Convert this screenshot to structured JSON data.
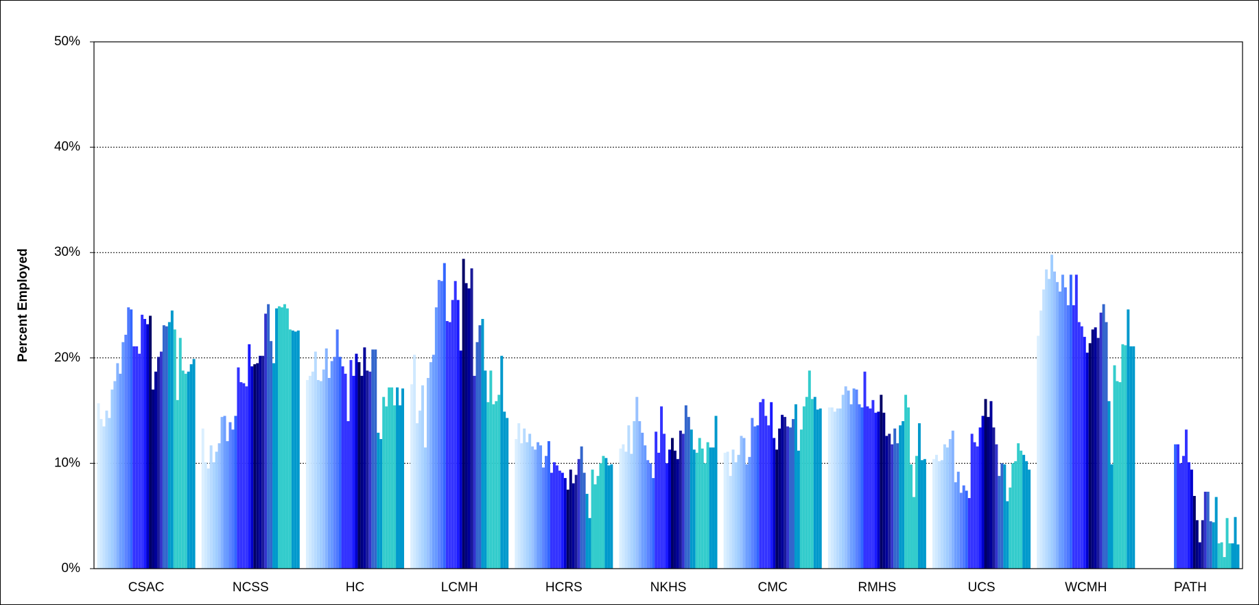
{
  "chart_data": {
    "type": "bar",
    "ylabel": "Percent Employed",
    "categories": [
      "CSAC",
      "NCSS",
      "HC",
      "LCMH",
      "HCRS",
      "NKHS",
      "CMC",
      "RMHS",
      "UCS",
      "WCMH",
      "PATH"
    ],
    "ylim": [
      0,
      50
    ],
    "yticks": [
      {
        "value": 0,
        "label": "0%"
      },
      {
        "value": 10,
        "label": "10%"
      },
      {
        "value": 20,
        "label": "20%"
      },
      {
        "value": 30,
        "label": "30%"
      },
      {
        "value": 40,
        "label": "40%"
      },
      {
        "value": 50,
        "label": "50%"
      }
    ],
    "grid": true,
    "series": [
      {
        "color": "#dbefff",
        "values": [
          15.7,
          13.3,
          17.9,
          17.5,
          12.3,
          11.4,
          11.0,
          15.3,
          10.4,
          22.1,
          null
        ]
      },
      {
        "color": "#d0e9ff",
        "values": [
          14.2,
          10.1,
          18.3,
          20.3,
          13.8,
          11.8,
          11.1,
          15.3,
          10.8,
          24.5,
          null
        ]
      },
      {
        "color": "#c4e2ff",
        "values": [
          13.5,
          9.5,
          18.7,
          13.8,
          11.9,
          11.1,
          8.8,
          14.9,
          10.2,
          26.5,
          null
        ]
      },
      {
        "color": "#b8dbff",
        "values": [
          15.0,
          11.7,
          20.6,
          15.0,
          13.3,
          13.6,
          11.3,
          15.2,
          10.3,
          28.4,
          null
        ]
      },
      {
        "color": "#acd4ff",
        "values": [
          14.3,
          10.1,
          17.9,
          17.4,
          12.0,
          10.9,
          10.1,
          15.2,
          11.8,
          27.5,
          null
        ]
      },
      {
        "color": "#a0cdff",
        "values": [
          17.0,
          11.1,
          17.8,
          11.5,
          12.8,
          14.0,
          10.8,
          16.5,
          11.5,
          29.8,
          null
        ]
      },
      {
        "color": "#99c2ff",
        "values": [
          17.8,
          11.9,
          18.9,
          18.1,
          11.6,
          16.3,
          12.6,
          17.3,
          12.3,
          28.2,
          null
        ]
      },
      {
        "color": "#85b3ff",
        "values": [
          19.5,
          14.4,
          20.9,
          19.6,
          11.3,
          14.0,
          12.4,
          16.9,
          13.1,
          27.2,
          null
        ]
      },
      {
        "color": "#6f9fff",
        "values": [
          18.5,
          14.5,
          18.1,
          20.3,
          12.0,
          12.9,
          9.9,
          15.6,
          8.2,
          26.3,
          null
        ]
      },
      {
        "color": "#6699ff",
        "values": [
          21.5,
          12.1,
          19.7,
          24.8,
          11.7,
          11.7,
          10.6,
          17.1,
          9.2,
          27.9,
          null
        ]
      },
      {
        "color": "#5c85ff",
        "values": [
          22.2,
          13.9,
          20.1,
          27.4,
          9.6,
          10.3,
          14.3,
          17.0,
          7.2,
          26.7,
          null
        ]
      },
      {
        "color": "#4d79ff",
        "values": [
          24.8,
          13.2,
          22.7,
          27.3,
          10.7,
          10.0,
          13.5,
          15.6,
          7.9,
          25.0,
          null
        ]
      },
      {
        "color": "#3366ff",
        "values": [
          24.6,
          14.5,
          20.1,
          29.0,
          12.1,
          8.6,
          13.6,
          15.3,
          7.4,
          27.9,
          11.8
        ]
      },
      {
        "color": "#3333ff",
        "values": [
          21.1,
          19.1,
          19.2,
          23.5,
          9.1,
          13.0,
          15.8,
          18.7,
          6.7,
          25.0,
          11.8
        ]
      },
      {
        "color": "#3333ff",
        "values": [
          21.1,
          17.7,
          18.5,
          23.4,
          10.1,
          11.0,
          16.1,
          15.4,
          12.8,
          27.9,
          10.0
        ]
      },
      {
        "color": "#3333ff",
        "values": [
          20.4,
          17.6,
          14.0,
          25.5,
          9.8,
          15.4,
          14.5,
          15.2,
          12.0,
          23.4,
          10.7
        ]
      },
      {
        "color": "#3333ff",
        "values": [
          24.1,
          17.3,
          19.8,
          27.3,
          9.3,
          12.8,
          13.6,
          16.0,
          11.6,
          23.0,
          13.2
        ]
      },
      {
        "color": "#1a1aff",
        "values": [
          23.7,
          21.3,
          18.3,
          25.5,
          9.1,
          10.0,
          15.8,
          14.8,
          13.4,
          22.0,
          10.1
        ]
      },
      {
        "color": "#0000cc",
        "values": [
          23.2,
          19.2,
          20.4,
          20.7,
          8.6,
          11.3,
          12.4,
          14.9,
          14.5,
          20.5,
          9.4
        ]
      },
      {
        "color": "#000066",
        "values": [
          24.0,
          19.4,
          19.6,
          29.4,
          7.5,
          12.4,
          11.3,
          16.5,
          16.1,
          21.4,
          6.9
        ]
      },
      {
        "color": "#000080",
        "values": [
          17.0,
          19.5,
          18.3,
          27.1,
          9.4,
          11.2,
          13.3,
          14.8,
          14.4,
          22.7,
          4.6
        ]
      },
      {
        "color": "#000099",
        "values": [
          18.7,
          20.2,
          21.0,
          26.6,
          8.1,
          10.4,
          14.6,
          12.6,
          15.9,
          22.9,
          2.5
        ]
      },
      {
        "color": "#1a1a99",
        "values": [
          20.1,
          20.2,
          18.8,
          28.5,
          8.9,
          13.1,
          14.4,
          12.8,
          13.4,
          21.9,
          4.6
        ]
      },
      {
        "color": "#3333cc",
        "values": [
          20.6,
          24.2,
          18.7,
          18.3,
          10.4,
          12.8,
          13.5,
          11.8,
          11.8,
          24.3,
          7.3
        ]
      },
      {
        "color": "#3366cc",
        "values": [
          23.1,
          25.1,
          20.8,
          21.5,
          11.6,
          15.5,
          13.4,
          13.3,
          8.8,
          25.1,
          7.3
        ]
      },
      {
        "color": "#3366cc",
        "values": [
          23.0,
          21.6,
          20.8,
          23.1,
          9.1,
          14.4,
          14.2,
          11.9,
          10.0,
          23.4,
          4.5
        ]
      },
      {
        "color": "#0099cc",
        "values": [
          23.4,
          19.5,
          12.9,
          23.7,
          7.1,
          13.2,
          15.6,
          13.6,
          9.9,
          15.9,
          4.4
        ]
      },
      {
        "color": "#0099cc",
        "values": [
          24.5,
          24.7,
          12.3,
          18.8,
          4.8,
          11.3,
          11.2,
          14.0,
          6.4,
          9.9,
          6.8
        ]
      },
      {
        "color": "#33cccc",
        "values": [
          22.7,
          24.9,
          16.3,
          15.8,
          9.4,
          11.0,
          13.2,
          16.5,
          7.7,
          19.3,
          2.4
        ]
      },
      {
        "color": "#33cccc",
        "values": [
          16.0,
          24.8,
          15.4,
          18.8,
          8.0,
          12.4,
          15.4,
          15.3,
          10.0,
          17.8,
          2.5
        ]
      },
      {
        "color": "#33cccc",
        "values": [
          21.9,
          25.1,
          17.2,
          15.6,
          8.8,
          11.4,
          16.3,
          9.9,
          10.2,
          17.7,
          1.1
        ]
      },
      {
        "color": "#33cccc",
        "values": [
          18.8,
          24.7,
          17.2,
          15.9,
          10.0,
          10.0,
          18.8,
          6.8,
          11.9,
          21.3,
          4.8
        ]
      },
      {
        "color": "#33cccc",
        "values": [
          18.5,
          22.7,
          15.5,
          16.5,
          10.7,
          12.0,
          16.1,
          10.7,
          11.2,
          21.2,
          2.4
        ]
      },
      {
        "color": "#0099cc",
        "values": [
          18.7,
          22.6,
          17.2,
          20.2,
          10.5,
          11.5,
          16.3,
          13.8,
          10.8,
          24.6,
          2.4
        ]
      },
      {
        "color": "#0099cc",
        "values": [
          19.4,
          22.5,
          15.5,
          14.9,
          9.8,
          11.5,
          15.1,
          10.3,
          10.2,
          21.1,
          4.9
        ]
      },
      {
        "color": "#0099cc",
        "values": [
          19.9,
          22.6,
          17.1,
          14.3,
          9.9,
          14.5,
          15.2,
          10.4,
          9.4,
          21.1,
          2.3
        ]
      }
    ]
  }
}
